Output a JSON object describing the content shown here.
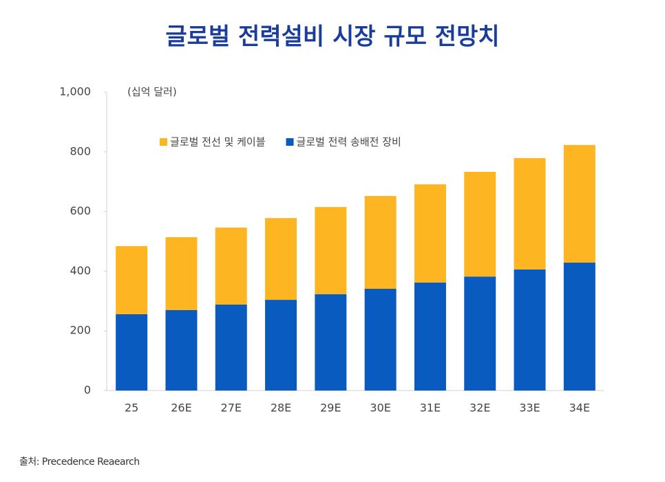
{
  "chart_data": {
    "type": "stacked_bar",
    "title": "글로벌 전력설비 시장 규모 전망치",
    "y_label": "(십억 달러)",
    "categories": [
      "25",
      "26E",
      "27E",
      "28E",
      "29E",
      "30E",
      "31E",
      "32E",
      "33E",
      "34E"
    ],
    "series": [
      {
        "name": "글로벌 전선 및 케이블",
        "color": "#fdb522",
        "values": [
          228,
          244,
          258,
          274,
          292,
          311,
          329,
          351,
          373,
          394
        ]
      },
      {
        "name": "글로벌 전력 송배전 장비",
        "color": "#0a5bbf",
        "values": [
          256,
          270,
          288,
          304,
          323,
          341,
          362,
          382,
          406,
          429
        ]
      }
    ],
    "ylim": [
      0,
      1000
    ],
    "yticks": [
      0,
      200,
      400,
      600,
      800,
      {
        "value": 1000,
        "label": "1,000"
      }
    ],
    "source": "출처: Precedence Reaearch"
  }
}
